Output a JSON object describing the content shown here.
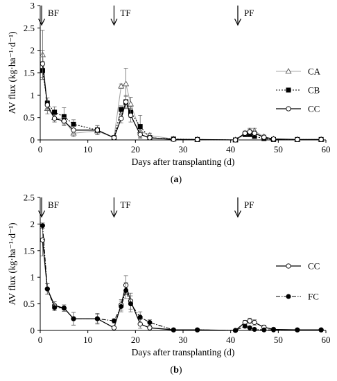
{
  "chart_data": [
    {
      "type": "line",
      "panel_label": "(a)",
      "xlabel": "Days after transplanting (d)",
      "ylabel": "AV flux (kg·ha⁻¹·d⁻¹)",
      "xlim": [
        0,
        60
      ],
      "ylim": [
        0,
        3
      ],
      "xticks": [
        0,
        10,
        20,
        30,
        40,
        50,
        60
      ],
      "yticks": [
        0,
        0.5,
        1,
        1.5,
        2,
        2.5,
        3
      ],
      "ytick_labels": [
        "0",
        "0.5",
        "1",
        "1.5",
        "2",
        "2.5",
        "3"
      ],
      "legend_position": "right",
      "annotations": [
        {
          "text": "BF",
          "x": 0.3
        },
        {
          "text": "TF",
          "x": 15.5
        },
        {
          "text": "PF",
          "x": 41.5
        }
      ],
      "series": [
        {
          "name": "CA",
          "marker": "triangle-open",
          "line": "solid-light",
          "color": "#a8a8a8",
          "x": [
            0.5,
            1.5,
            3,
            5,
            7,
            12,
            15.5,
            17,
            18,
            19,
            21,
            23,
            28,
            33,
            41,
            43,
            44,
            45,
            47,
            49,
            54,
            59
          ],
          "y": [
            1.9,
            0.7,
            0.5,
            0.45,
            0.15,
            0.2,
            0.05,
            1.2,
            1.25,
            0.8,
            0.2,
            0.1,
            0.02,
            0.01,
            0.0,
            0.15,
            0.2,
            0.2,
            0.07,
            0.02,
            0.01,
            0.01
          ],
          "err": [
            0.55,
            0.12,
            0.1,
            0.08,
            0.08,
            0.08,
            0.02,
            0.05,
            0.35,
            0.15,
            0.1,
            0.05,
            0.01,
            0.01,
            0.0,
            0.05,
            0.06,
            0.06,
            0.04,
            0.01,
            0.0,
            0.0
          ]
        },
        {
          "name": "CB",
          "marker": "square-filled",
          "line": "dotted",
          "color": "#000000",
          "x": [
            0.5,
            1.5,
            3,
            5,
            7,
            12,
            15.5,
            17,
            18,
            19,
            21,
            23,
            28,
            33,
            41,
            43,
            44,
            45,
            47,
            49,
            54,
            59
          ],
          "y": [
            1.55,
            0.82,
            0.62,
            0.52,
            0.35,
            0.22,
            0.05,
            0.68,
            0.85,
            0.62,
            0.3,
            0.05,
            0.02,
            0.01,
            0.0,
            0.12,
            0.12,
            0.08,
            0.03,
            0.01,
            0.01,
            0.01
          ],
          "err": [
            0.2,
            0.12,
            0.12,
            0.2,
            0.1,
            0.1,
            0.02,
            0.08,
            0.12,
            0.12,
            0.25,
            0.03,
            0.01,
            0.0,
            0.0,
            0.04,
            0.04,
            0.03,
            0.02,
            0.01,
            0.0,
            0.0
          ]
        },
        {
          "name": "CC",
          "marker": "circle-open",
          "line": "solid",
          "color": "#000000",
          "x": [
            0.5,
            1.5,
            3,
            5,
            7,
            12,
            15.5,
            17,
            18,
            19,
            21,
            23,
            28,
            33,
            41,
            43,
            44,
            45,
            47,
            49,
            54,
            59
          ],
          "y": [
            1.7,
            0.78,
            0.48,
            0.42,
            0.22,
            0.22,
            0.05,
            0.48,
            0.85,
            0.55,
            0.12,
            0.05,
            0.01,
            0.01,
            0.0,
            0.15,
            0.18,
            0.15,
            0.06,
            0.02,
            0.01,
            0.01
          ],
          "err": [
            0.3,
            0.1,
            0.08,
            0.08,
            0.08,
            0.1,
            0.02,
            0.1,
            0.15,
            0.15,
            0.08,
            0.03,
            0.01,
            0.0,
            0.0,
            0.04,
            0.05,
            0.05,
            0.03,
            0.01,
            0.0,
            0.0
          ]
        }
      ]
    },
    {
      "type": "line",
      "panel_label": "(b)",
      "xlabel": "Days after transplanting (d)",
      "ylabel": "AV flux (kg·ha⁻¹·d⁻¹)",
      "xlim": [
        0,
        60
      ],
      "ylim": [
        0,
        2.5
      ],
      "xticks": [
        0,
        10,
        20,
        30,
        40,
        50,
        60
      ],
      "yticks": [
        0,
        0.5,
        1,
        1.5,
        2,
        2.5
      ],
      "ytick_labels": [
        "0",
        "0.5",
        "1",
        "1.5",
        "2",
        "2.5"
      ],
      "legend_position": "right",
      "annotations": [
        {
          "text": "BF",
          "x": 0.3
        },
        {
          "text": "TF",
          "x": 15.5
        },
        {
          "text": "PF",
          "x": 41.5
        }
      ],
      "series": [
        {
          "name": "CC",
          "marker": "circle-open",
          "line": "solid",
          "color": "#000000",
          "x": [
            0.5,
            1.5,
            3,
            5,
            7,
            12,
            15.5,
            17,
            18,
            19,
            21,
            23,
            28,
            33,
            41,
            43,
            44,
            45,
            47,
            49,
            54,
            59
          ],
          "y": [
            1.7,
            0.78,
            0.47,
            0.42,
            0.22,
            0.22,
            0.05,
            0.48,
            0.85,
            0.55,
            0.12,
            0.05,
            0.01,
            0.01,
            0.0,
            0.15,
            0.18,
            0.15,
            0.06,
            0.02,
            0.01,
            0.01
          ],
          "err": [
            0.3,
            0.1,
            0.07,
            0.06,
            0.12,
            0.1,
            0.02,
            0.1,
            0.18,
            0.15,
            0.08,
            0.03,
            0.01,
            0.0,
            0.0,
            0.04,
            0.05,
            0.05,
            0.04,
            0.01,
            0.0,
            0.0
          ]
        },
        {
          "name": "FC",
          "marker": "circle-filled",
          "line": "dashdot",
          "color": "#000000",
          "x": [
            0.5,
            1.5,
            3,
            5,
            7,
            12,
            15.5,
            17,
            18,
            19,
            21,
            23,
            28,
            33,
            41,
            43,
            44,
            45,
            47,
            49,
            54,
            59
          ],
          "y": [
            1.97,
            0.78,
            0.43,
            0.42,
            0.22,
            0.22,
            0.18,
            0.45,
            0.75,
            0.5,
            0.25,
            0.15,
            0.01,
            0.01,
            0.0,
            0.08,
            0.05,
            0.02,
            0.01,
            0.01,
            0.01,
            0.01
          ],
          "err": [
            0.05,
            0.1,
            0.06,
            0.06,
            0.12,
            0.08,
            0.04,
            0.1,
            0.15,
            0.15,
            0.1,
            0.05,
            0.01,
            0.0,
            0.0,
            0.03,
            0.02,
            0.01,
            0.01,
            0.0,
            0.0,
            0.0
          ]
        }
      ]
    }
  ]
}
